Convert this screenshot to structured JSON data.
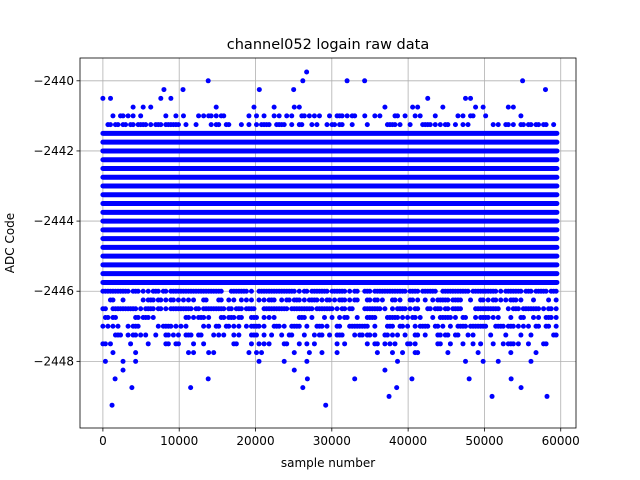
{
  "chart_data": {
    "type": "scatter",
    "title": "channel052 logain raw data",
    "xlabel": "sample number",
    "ylabel": "ADC Code",
    "xlim": [
      -3000,
      62000
    ],
    "ylim": [
      -2449.9,
      -2439.35
    ],
    "x_ticks": [
      0,
      10000,
      20000,
      30000,
      40000,
      50000,
      60000
    ],
    "x_tick_labels": [
      "0",
      "10000",
      "20000",
      "30000",
      "40000",
      "50000",
      "60000"
    ],
    "y_ticks": [
      -2440,
      -2442,
      -2444,
      -2446,
      -2448
    ],
    "y_tick_labels": [
      "−2440",
      "−2442",
      "−2444",
      "−2446",
      "−2448"
    ],
    "grid": true,
    "marker_color": "#0000ff",
    "sample_range": [
      0,
      59500
    ],
    "level_step": 0.25,
    "dense_band": [
      -2445.75,
      -2441.5
    ],
    "sparse_levels": [
      {
        "y": -2441.25,
        "density": 0.45
      },
      {
        "y": -2441.0,
        "density": 0.25
      },
      {
        "y": -2440.75,
        "density": 0.1
      },
      {
        "y": -2440.5,
        "density": 0.04
      },
      {
        "y": -2446.0,
        "density": 0.85
      },
      {
        "y": -2446.25,
        "density": 0.5
      },
      {
        "y": -2446.5,
        "density": 0.7
      },
      {
        "y": -2446.75,
        "density": 0.4
      },
      {
        "y": -2447.0,
        "density": 0.5
      },
      {
        "y": -2447.25,
        "density": 0.35
      },
      {
        "y": -2447.5,
        "density": 0.25
      },
      {
        "y": -2447.75,
        "density": 0.12
      },
      {
        "y": -2448.0,
        "density": 0.04
      },
      {
        "y": -2448.25,
        "density": 0.02
      }
    ],
    "outliers": [
      {
        "x": 1200,
        "y": -2449.25
      },
      {
        "x": 1600,
        "y": -2448.5
      },
      {
        "x": 3800,
        "y": -2448.75
      },
      {
        "x": 11500,
        "y": -2448.75
      },
      {
        "x": 13800,
        "y": -2448.5
      },
      {
        "x": 26200,
        "y": -2448.75
      },
      {
        "x": 26800,
        "y": -2448.5
      },
      {
        "x": 29200,
        "y": -2449.25
      },
      {
        "x": 33000,
        "y": -2448.5
      },
      {
        "x": 37500,
        "y": -2449.0
      },
      {
        "x": 38500,
        "y": -2448.75
      },
      {
        "x": 40500,
        "y": -2448.5
      },
      {
        "x": 48000,
        "y": -2448.5
      },
      {
        "x": 51000,
        "y": -2449.0
      },
      {
        "x": 53500,
        "y": -2448.5
      },
      {
        "x": 54800,
        "y": -2448.75
      },
      {
        "x": 58200,
        "y": -2449.0
      },
      {
        "x": 13800,
        "y": -2440.0
      },
      {
        "x": 26200,
        "y": -2440.0
      },
      {
        "x": 26700,
        "y": -2439.75
      },
      {
        "x": 32000,
        "y": -2440.0
      },
      {
        "x": 34300,
        "y": -2440.0
      },
      {
        "x": 55000,
        "y": -2440.0
      },
      {
        "x": 8000,
        "y": -2440.25
      },
      {
        "x": 10500,
        "y": -2440.25
      },
      {
        "x": 20500,
        "y": -2440.25
      },
      {
        "x": 25000,
        "y": -2440.25
      },
      {
        "x": 58000,
        "y": -2440.25
      },
      {
        "x": 0,
        "y": -2440.5
      },
      {
        "x": 1000,
        "y": -2440.5
      }
    ]
  }
}
